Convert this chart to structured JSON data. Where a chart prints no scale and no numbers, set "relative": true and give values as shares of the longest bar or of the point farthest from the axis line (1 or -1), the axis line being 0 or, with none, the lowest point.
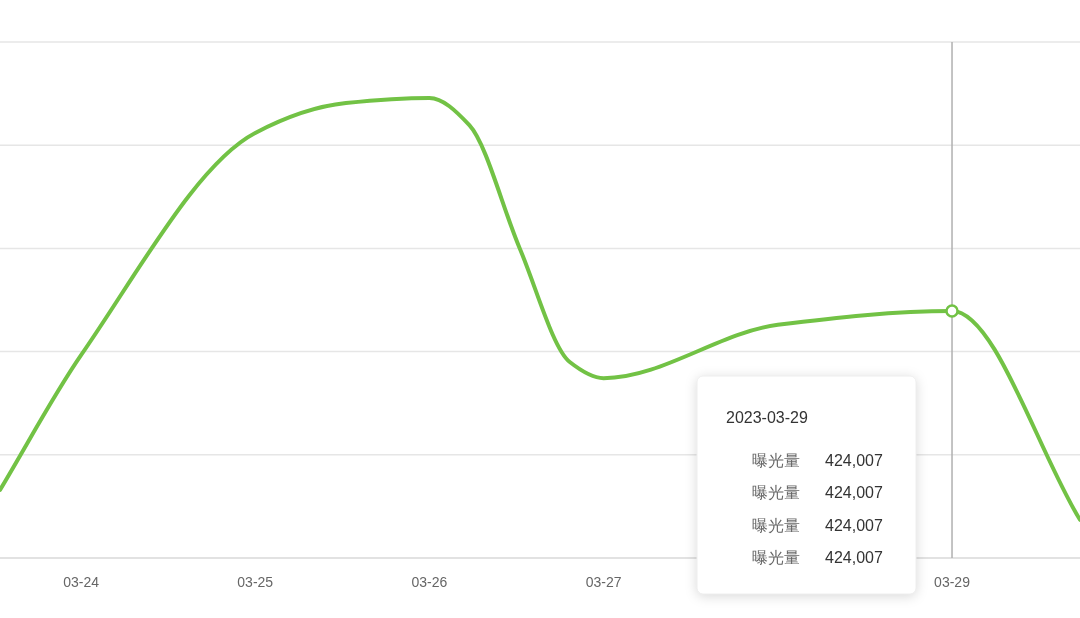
{
  "chart_data": {
    "type": "line",
    "relative": true,
    "x": [
      "2023-03-23T12:50",
      "2023-03-24",
      "2023-03-25",
      "2023-03-25T12:30",
      "2023-03-26",
      "2023-03-26T05:30",
      "2023-03-26T12:25",
      "2023-03-26T19:20",
      "2023-03-27",
      "2023-03-28",
      "2023-03-29",
      "2023-03-29T17:38"
    ],
    "series": [
      {
        "color": "#72c245",
        "values": [
          0.148,
          0.441,
          0.924,
          0.989,
          1,
          0.941,
          0.674,
          0.426,
          0.391,
          0.507,
          0.537,
          0.083
        ]
      }
    ],
    "xlim": [
      "2023-03-23T12:50",
      "2023-03-29T17:38"
    ],
    "xticks": [
      {
        "value": "2023-03-24",
        "label": "03-24"
      },
      {
        "value": "2023-03-25",
        "label": "03-25"
      },
      {
        "value": "2023-03-26",
        "label": "03-26"
      },
      {
        "value": "2023-03-27",
        "label": "03-27"
      },
      {
        "value": "2023-03-29",
        "label": "03-29"
      }
    ],
    "grid": "y",
    "marker": "none",
    "line_style": "solid",
    "ref_lines": [
      {
        "axis": "x",
        "value": "2023-03-29",
        "color": "#b0b0b0"
      }
    ],
    "annotations": [
      "2023-03-29",
      "曝光量 424,007",
      "曝光量 424,007",
      "曝光量 424,007",
      "曝光量 424,007"
    ]
  }
}
